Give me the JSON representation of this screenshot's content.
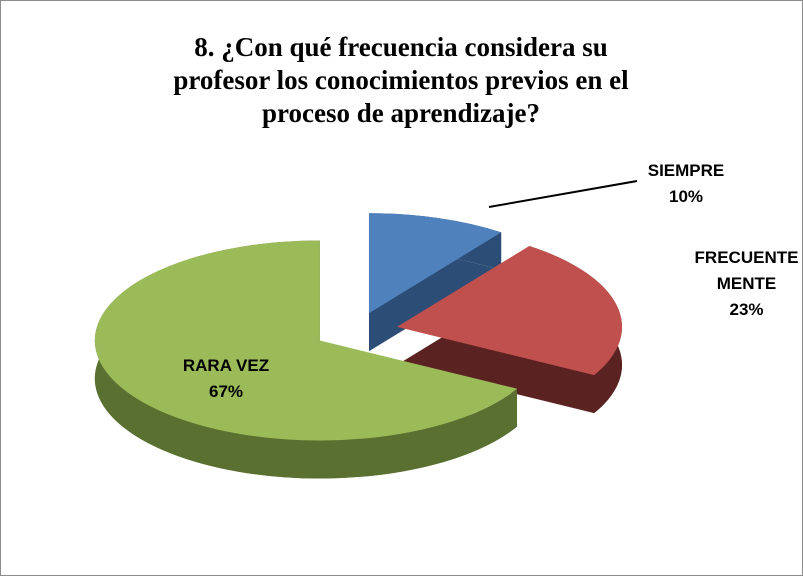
{
  "chart_data": {
    "type": "pie",
    "title": "8. ¿Con qué frecuencia considera su profesor los conocimientos previos en el proceso de aprendizaje?",
    "categories": [
      "SIEMPRE",
      "FRECUENTE MENTE",
      "RARA VEZ"
    ],
    "values": [
      10,
      23,
      67
    ],
    "value_labels": [
      "10%",
      "23%",
      "67%"
    ],
    "colors": [
      "#4f81bd",
      "#c0504d",
      "#9bbb59"
    ],
    "side_colors": [
      "#2c4d75",
      "#5a2220",
      "#5a7030"
    ]
  }
}
